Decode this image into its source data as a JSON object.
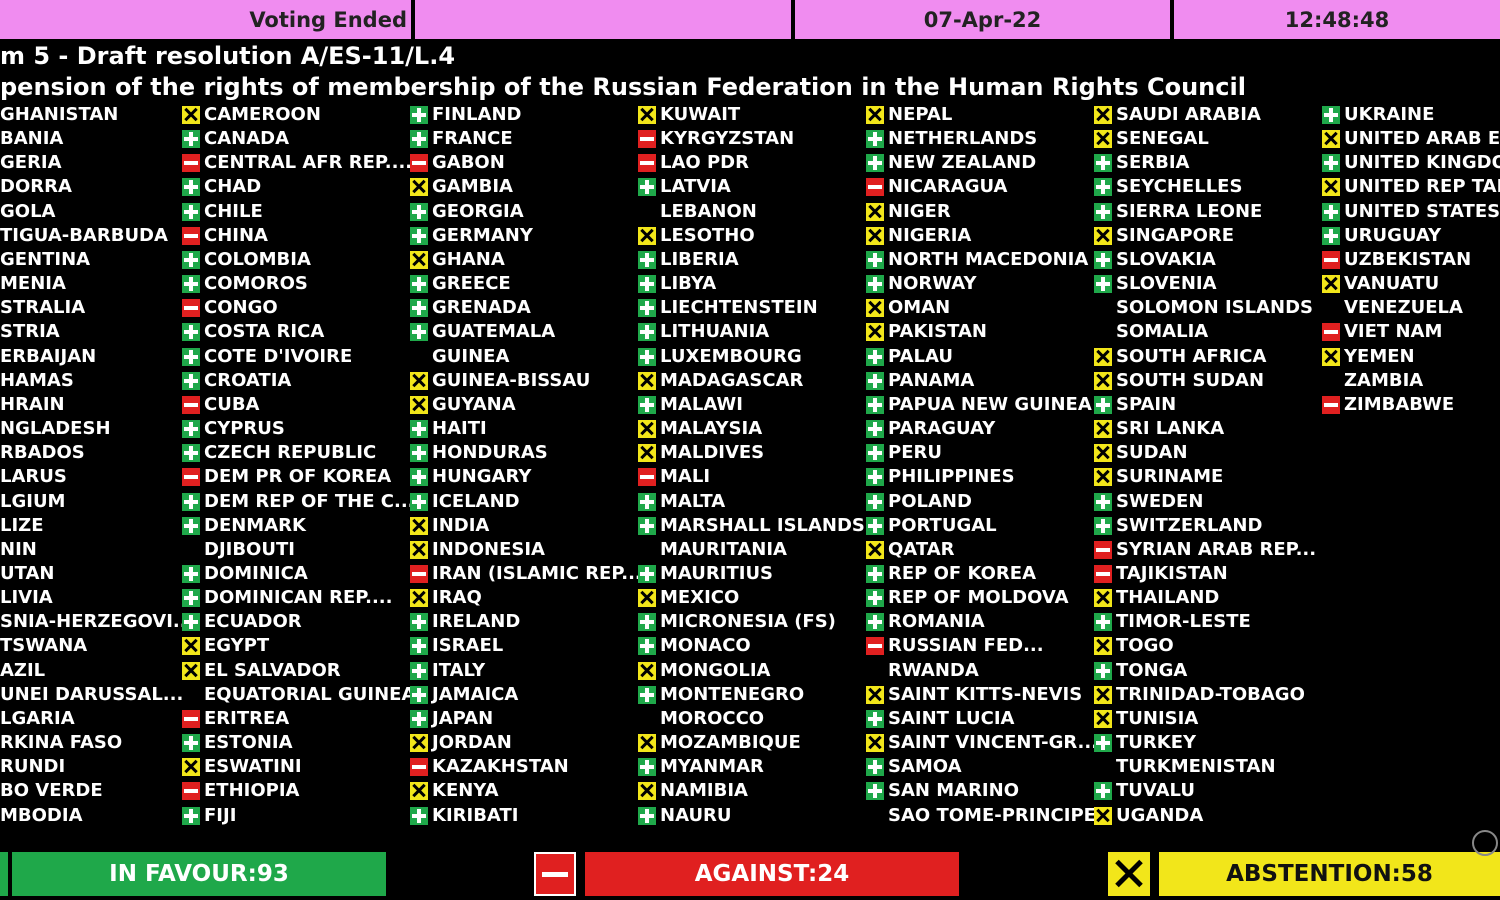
{
  "header": {
    "status": "Voting Ended",
    "blank": "",
    "date": "07-Apr-22",
    "time": "12:48:48"
  },
  "title": {
    "line1": "m 5 - Draft resolution A/ES-11/L.4",
    "line2": "pension of the rights of membership of the Russian Federation in the Human Rights Council"
  },
  "columns": [
    [
      {
        "name": "GHANISTAN",
        "vote": ""
      },
      {
        "name": "BANIA",
        "vote": ""
      },
      {
        "name": "GERIA",
        "vote": ""
      },
      {
        "name": "DORRA",
        "vote": ""
      },
      {
        "name": "GOLA",
        "vote": ""
      },
      {
        "name": "TIGUA-BARBUDA",
        "vote": ""
      },
      {
        "name": "GENTINA",
        "vote": ""
      },
      {
        "name": "MENIA",
        "vote": ""
      },
      {
        "name": "STRALIA",
        "vote": ""
      },
      {
        "name": "STRIA",
        "vote": ""
      },
      {
        "name": "ERBAIJAN",
        "vote": ""
      },
      {
        "name": "HAMAS",
        "vote": ""
      },
      {
        "name": "HRAIN",
        "vote": ""
      },
      {
        "name": "NGLADESH",
        "vote": ""
      },
      {
        "name": "RBADOS",
        "vote": ""
      },
      {
        "name": "LARUS",
        "vote": ""
      },
      {
        "name": "LGIUM",
        "vote": ""
      },
      {
        "name": "LIZE",
        "vote": ""
      },
      {
        "name": "NIN",
        "vote": ""
      },
      {
        "name": "UTAN",
        "vote": ""
      },
      {
        "name": "LIVIA",
        "vote": ""
      },
      {
        "name": "SNIA-HERZEGOVI...",
        "vote": ""
      },
      {
        "name": "TSWANA",
        "vote": ""
      },
      {
        "name": "AZIL",
        "vote": ""
      },
      {
        "name": "UNEI DARUSSAL...",
        "vote": ""
      },
      {
        "name": "LGARIA",
        "vote": ""
      },
      {
        "name": "RKINA FASO",
        "vote": ""
      },
      {
        "name": "RUNDI",
        "vote": ""
      },
      {
        "name": "BO VERDE",
        "vote": ""
      },
      {
        "name": "MBODIA",
        "vote": ""
      }
    ],
    [
      {
        "name": "CAMEROON",
        "vote": "abs"
      },
      {
        "name": "CANADA",
        "vote": "yes"
      },
      {
        "name": "CENTRAL AFR REP....",
        "vote": "no"
      },
      {
        "name": "CHAD",
        "vote": "yes"
      },
      {
        "name": "CHILE",
        "vote": "yes"
      },
      {
        "name": "CHINA",
        "vote": "no"
      },
      {
        "name": "COLOMBIA",
        "vote": "yes"
      },
      {
        "name": "COMOROS",
        "vote": "yes"
      },
      {
        "name": "CONGO",
        "vote": "no"
      },
      {
        "name": "COSTA RICA",
        "vote": "yes"
      },
      {
        "name": "COTE D'IVOIRE",
        "vote": "yes"
      },
      {
        "name": "CROATIA",
        "vote": "yes"
      },
      {
        "name": "CUBA",
        "vote": "no"
      },
      {
        "name": "CYPRUS",
        "vote": "yes"
      },
      {
        "name": "CZECH REPUBLIC",
        "vote": "yes"
      },
      {
        "name": "DEM PR OF KOREA",
        "vote": "no"
      },
      {
        "name": "DEM REP OF THE C...",
        "vote": "yes"
      },
      {
        "name": "DENMARK",
        "vote": "yes"
      },
      {
        "name": "DJIBOUTI",
        "vote": "none"
      },
      {
        "name": "DOMINICA",
        "vote": "yes"
      },
      {
        "name": "DOMINICAN REP....",
        "vote": "yes"
      },
      {
        "name": "ECUADOR",
        "vote": "yes"
      },
      {
        "name": "EGYPT",
        "vote": "abs"
      },
      {
        "name": "EL SALVADOR",
        "vote": "abs"
      },
      {
        "name": "EQUATORIAL GUINEA",
        "vote": "none"
      },
      {
        "name": "ERITREA",
        "vote": "no"
      },
      {
        "name": "ESTONIA",
        "vote": "yes"
      },
      {
        "name": "ESWATINI",
        "vote": "abs"
      },
      {
        "name": "ETHIOPIA",
        "vote": "no"
      },
      {
        "name": "FIJI",
        "vote": "yes"
      }
    ],
    [
      {
        "name": "FINLAND",
        "vote": "yes"
      },
      {
        "name": "FRANCE",
        "vote": "yes"
      },
      {
        "name": "GABON",
        "vote": "no"
      },
      {
        "name": "GAMBIA",
        "vote": "abs"
      },
      {
        "name": "GEORGIA",
        "vote": "yes"
      },
      {
        "name": "GERMANY",
        "vote": "yes"
      },
      {
        "name": "GHANA",
        "vote": "abs"
      },
      {
        "name": "GREECE",
        "vote": "yes"
      },
      {
        "name": "GRENADA",
        "vote": "yes"
      },
      {
        "name": "GUATEMALA",
        "vote": "yes"
      },
      {
        "name": "GUINEA",
        "vote": "none"
      },
      {
        "name": "GUINEA-BISSAU",
        "vote": "abs"
      },
      {
        "name": "GUYANA",
        "vote": "abs"
      },
      {
        "name": "HAITI",
        "vote": "yes"
      },
      {
        "name": "HONDURAS",
        "vote": "yes"
      },
      {
        "name": "HUNGARY",
        "vote": "yes"
      },
      {
        "name": "ICELAND",
        "vote": "yes"
      },
      {
        "name": "INDIA",
        "vote": "abs"
      },
      {
        "name": "INDONESIA",
        "vote": "abs"
      },
      {
        "name": "IRAN (ISLAMIC REP...",
        "vote": "no"
      },
      {
        "name": "IRAQ",
        "vote": "abs"
      },
      {
        "name": "IRELAND",
        "vote": "yes"
      },
      {
        "name": "ISRAEL",
        "vote": "yes"
      },
      {
        "name": "ITALY",
        "vote": "yes"
      },
      {
        "name": "JAMAICA",
        "vote": "yes"
      },
      {
        "name": "JAPAN",
        "vote": "yes"
      },
      {
        "name": "JORDAN",
        "vote": "abs"
      },
      {
        "name": "KAZAKHSTAN",
        "vote": "no"
      },
      {
        "name": "KENYA",
        "vote": "abs"
      },
      {
        "name": "KIRIBATI",
        "vote": "yes"
      }
    ],
    [
      {
        "name": "KUWAIT",
        "vote": "abs"
      },
      {
        "name": "KYRGYZSTAN",
        "vote": "no"
      },
      {
        "name": "LAO PDR",
        "vote": "no"
      },
      {
        "name": "LATVIA",
        "vote": "yes"
      },
      {
        "name": "LEBANON",
        "vote": "none"
      },
      {
        "name": "LESOTHO",
        "vote": "abs"
      },
      {
        "name": "LIBERIA",
        "vote": "yes"
      },
      {
        "name": "LIBYA",
        "vote": "yes"
      },
      {
        "name": "LIECHTENSTEIN",
        "vote": "yes"
      },
      {
        "name": "LITHUANIA",
        "vote": "yes"
      },
      {
        "name": "LUXEMBOURG",
        "vote": "yes"
      },
      {
        "name": "MADAGASCAR",
        "vote": "abs"
      },
      {
        "name": "MALAWI",
        "vote": "yes"
      },
      {
        "name": "MALAYSIA",
        "vote": "abs"
      },
      {
        "name": "MALDIVES",
        "vote": "abs"
      },
      {
        "name": "MALI",
        "vote": "no"
      },
      {
        "name": "MALTA",
        "vote": "yes"
      },
      {
        "name": "MARSHALL ISLANDS",
        "vote": "yes"
      },
      {
        "name": "MAURITANIA",
        "vote": "none"
      },
      {
        "name": "MAURITIUS",
        "vote": "yes"
      },
      {
        "name": "MEXICO",
        "vote": "abs"
      },
      {
        "name": "MICRONESIA (FS)",
        "vote": "yes"
      },
      {
        "name": "MONACO",
        "vote": "yes"
      },
      {
        "name": "MONGOLIA",
        "vote": "abs"
      },
      {
        "name": "MONTENEGRO",
        "vote": "yes"
      },
      {
        "name": "MOROCCO",
        "vote": "none"
      },
      {
        "name": "MOZAMBIQUE",
        "vote": "abs"
      },
      {
        "name": "MYANMAR",
        "vote": "yes"
      },
      {
        "name": "NAMIBIA",
        "vote": "abs"
      },
      {
        "name": "NAURU",
        "vote": "yes"
      }
    ],
    [
      {
        "name": "NEPAL",
        "vote": "abs"
      },
      {
        "name": "NETHERLANDS",
        "vote": "yes"
      },
      {
        "name": "NEW ZEALAND",
        "vote": "yes"
      },
      {
        "name": "NICARAGUA",
        "vote": "no"
      },
      {
        "name": "NIGER",
        "vote": "abs"
      },
      {
        "name": "NIGERIA",
        "vote": "abs"
      },
      {
        "name": "NORTH MACEDONIA",
        "vote": "yes"
      },
      {
        "name": "NORWAY",
        "vote": "yes"
      },
      {
        "name": "OMAN",
        "vote": "abs"
      },
      {
        "name": "PAKISTAN",
        "vote": "abs"
      },
      {
        "name": "PALAU",
        "vote": "yes"
      },
      {
        "name": "PANAMA",
        "vote": "yes"
      },
      {
        "name": "PAPUA NEW GUINEA",
        "vote": "yes"
      },
      {
        "name": "PARAGUAY",
        "vote": "yes"
      },
      {
        "name": "PERU",
        "vote": "yes"
      },
      {
        "name": "PHILIPPINES",
        "vote": "yes"
      },
      {
        "name": "POLAND",
        "vote": "yes"
      },
      {
        "name": "PORTUGAL",
        "vote": "yes"
      },
      {
        "name": "QATAR",
        "vote": "abs"
      },
      {
        "name": "REP OF KOREA",
        "vote": "yes"
      },
      {
        "name": "REP OF MOLDOVA",
        "vote": "yes"
      },
      {
        "name": "ROMANIA",
        "vote": "yes"
      },
      {
        "name": "RUSSIAN FED...",
        "vote": "no"
      },
      {
        "name": "RWANDA",
        "vote": "none"
      },
      {
        "name": "SAINT KITTS-NEVIS",
        "vote": "abs"
      },
      {
        "name": "SAINT LUCIA",
        "vote": "yes"
      },
      {
        "name": "SAINT VINCENT-GR...",
        "vote": "abs"
      },
      {
        "name": "SAMOA",
        "vote": "yes"
      },
      {
        "name": "SAN MARINO",
        "vote": "yes"
      },
      {
        "name": "SAO TOME-PRINCIPE",
        "vote": "none"
      }
    ],
    [
      {
        "name": "SAUDI ARABIA",
        "vote": "abs"
      },
      {
        "name": "SENEGAL",
        "vote": "abs"
      },
      {
        "name": "SERBIA",
        "vote": "yes"
      },
      {
        "name": "SEYCHELLES",
        "vote": "yes"
      },
      {
        "name": "SIERRA LEONE",
        "vote": "yes"
      },
      {
        "name": "SINGAPORE",
        "vote": "abs"
      },
      {
        "name": "SLOVAKIA",
        "vote": "yes"
      },
      {
        "name": "SLOVENIA",
        "vote": "yes"
      },
      {
        "name": "SOLOMON ISLANDS",
        "vote": "none"
      },
      {
        "name": "SOMALIA",
        "vote": "none"
      },
      {
        "name": "SOUTH AFRICA",
        "vote": "abs"
      },
      {
        "name": "SOUTH SUDAN",
        "vote": "abs"
      },
      {
        "name": "SPAIN",
        "vote": "yes"
      },
      {
        "name": "SRI LANKA",
        "vote": "abs"
      },
      {
        "name": "SUDAN",
        "vote": "abs"
      },
      {
        "name": "SURINAME",
        "vote": "abs"
      },
      {
        "name": "SWEDEN",
        "vote": "yes"
      },
      {
        "name": "SWITZERLAND",
        "vote": "yes"
      },
      {
        "name": "SYRIAN ARAB REP...",
        "vote": "no"
      },
      {
        "name": "TAJIKISTAN",
        "vote": "no"
      },
      {
        "name": "THAILAND",
        "vote": "abs"
      },
      {
        "name": "TIMOR-LESTE",
        "vote": "yes"
      },
      {
        "name": "TOGO",
        "vote": "abs"
      },
      {
        "name": "TONGA",
        "vote": "yes"
      },
      {
        "name": "TRINIDAD-TOBAGO",
        "vote": "abs"
      },
      {
        "name": "TUNISIA",
        "vote": "abs"
      },
      {
        "name": "TURKEY",
        "vote": "yes"
      },
      {
        "name": "TURKMENISTAN",
        "vote": "none"
      },
      {
        "name": "TUVALU",
        "vote": "yes"
      },
      {
        "name": "UGANDA",
        "vote": "abs"
      }
    ],
    [
      {
        "name": "UKRAINE",
        "vote": "yes"
      },
      {
        "name": "UNITED ARAB EM",
        "vote": "abs"
      },
      {
        "name": "UNITED KINGDO",
        "vote": "yes"
      },
      {
        "name": "UNITED REP TAN",
        "vote": "abs"
      },
      {
        "name": "UNITED STATES",
        "vote": "yes"
      },
      {
        "name": "URUGUAY",
        "vote": "yes"
      },
      {
        "name": "UZBEKISTAN",
        "vote": "no"
      },
      {
        "name": "VANUATU",
        "vote": "abs"
      },
      {
        "name": "VENEZUELA",
        "vote": "none"
      },
      {
        "name": "VIET NAM",
        "vote": "no"
      },
      {
        "name": "YEMEN",
        "vote": "abs"
      },
      {
        "name": "ZAMBIA",
        "vote": "none"
      },
      {
        "name": "ZIMBABWE",
        "vote": "no"
      }
    ]
  ],
  "totals": {
    "favour": "IN FAVOUR:93",
    "against": "AGAINST:24",
    "abstention": "ABSTENTION:58"
  },
  "colors": {
    "header_bg": "#f08cf0",
    "favour": "#1fa84a",
    "against": "#e02020",
    "abstention": "#f2e61a",
    "background": "#000000"
  }
}
